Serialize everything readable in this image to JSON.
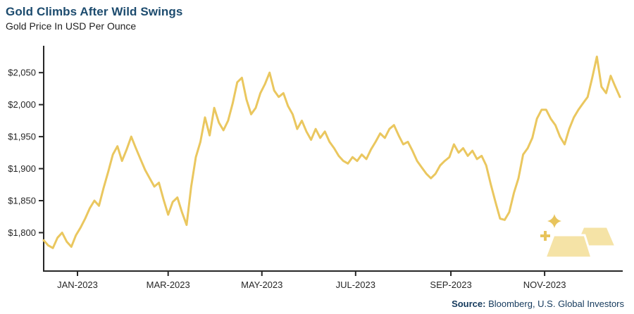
{
  "header": {
    "title": "Gold Climbs After Wild Swings",
    "subtitle": "Gold Price In USD Per Ounce"
  },
  "footer": {
    "source_label": "Source:",
    "source_text": " Bloomberg, U.S. Global Investors"
  },
  "colors": {
    "line": "#EAC75F",
    "axis": "#262626",
    "title": "#1C4B6E",
    "bar_fill": "#F5E3A6",
    "sparkle": "#E8C45C"
  },
  "icons": {
    "gold_bars": "gold-bars-icon",
    "sparkle": "sparkle-icon",
    "plus_sparkle": "plus-sparkle-icon"
  },
  "chart_data": {
    "type": "line",
    "title": "Gold Climbs After Wild Swings",
    "subtitle": "Gold Price In USD Per Ounce",
    "ylabel": "Gold Price In USD Per Ounce",
    "grid": false,
    "legend": "none",
    "ylim": [
      1740,
      2092
    ],
    "x_domain": [
      0,
      375
    ],
    "x_start_day": 0,
    "x_step_days": 3,
    "y_ticks": [
      {
        "label": "$1,800",
        "value": 1800
      },
      {
        "label": "$1,850",
        "value": 1850
      },
      {
        "label": "$1,900",
        "value": 1900
      },
      {
        "label": "$1,950",
        "value": 1950
      },
      {
        "label": "$2,000",
        "value": 2000
      },
      {
        "label": "$2,050",
        "value": 2050
      }
    ],
    "x_ticks": [
      {
        "label": "JAN-2023",
        "day": 22
      },
      {
        "label": "MAR-2023",
        "day": 81
      },
      {
        "label": "MAY-2023",
        "day": 142
      },
      {
        "label": "JUL-2023",
        "day": 203
      },
      {
        "label": "SEP-2023",
        "day": 265
      },
      {
        "label": "NOV-2023",
        "day": 326
      }
    ],
    "values": [
      1788,
      1780,
      1776,
      1792,
      1800,
      1786,
      1778,
      1796,
      1808,
      1822,
      1838,
      1850,
      1842,
      1870,
      1895,
      1922,
      1935,
      1912,
      1930,
      1950,
      1932,
      1915,
      1898,
      1885,
      1872,
      1878,
      1852,
      1828,
      1848,
      1855,
      1832,
      1812,
      1872,
      1918,
      1942,
      1980,
      1952,
      1995,
      1972,
      1960,
      1975,
      2002,
      2035,
      2042,
      2008,
      1985,
      1995,
      2018,
      2032,
      2050,
      2022,
      2012,
      2018,
      1998,
      1985,
      1962,
      1975,
      1958,
      1945,
      1962,
      1948,
      1958,
      1942,
      1932,
      1920,
      1912,
      1908,
      1918,
      1912,
      1922,
      1915,
      1930,
      1942,
      1955,
      1948,
      1962,
      1968,
      1952,
      1938,
      1942,
      1928,
      1912,
      1902,
      1892,
      1885,
      1892,
      1905,
      1912,
      1918,
      1938,
      1925,
      1932,
      1920,
      1928,
      1915,
      1920,
      1905,
      1875,
      1848,
      1822,
      1820,
      1832,
      1862,
      1885,
      1922,
      1932,
      1948,
      1978,
      1992,
      1992,
      1978,
      1968,
      1950,
      1938,
      1962,
      1980,
      1992,
      2002,
      2012,
      2042,
      2075,
      2028,
      2018,
      2045,
      2028,
      2012
    ]
  }
}
